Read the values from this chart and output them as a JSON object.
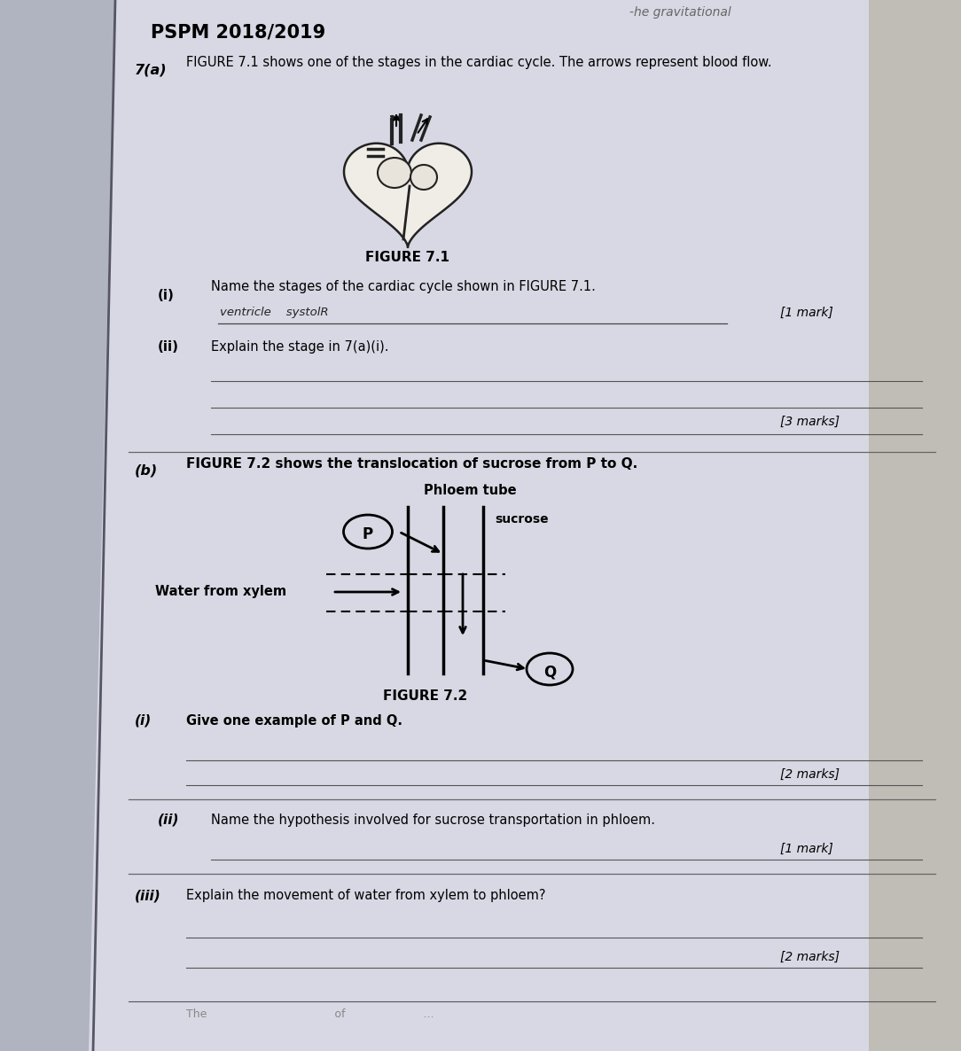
{
  "bg_color_outer": "#b8b5b0",
  "bg_color_left": "#c8ccd8",
  "bg_color_page": "#dcdce8",
  "bg_color_right": "#c0bdb8",
  "header_text": "PSPM 2018/2019",
  "top_right_text": "-he gravitational",
  "question_7a_label": "7(a)",
  "question_7a_text": "FIGURE 7.1 shows one of the stages in the cardiac cycle. The arrows represent blood flow.",
  "figure71_label": "FIGURE 7.1",
  "q_i_label": "(i)",
  "q_i_text": "Name the stages of the cardiac cycle shown in FIGURE 7.1.",
  "q_i_answer": "ventricle    systolR",
  "q_ii_label": "(ii)",
  "q_ii_text": "Explain the stage in 7(a)(i).",
  "mark_1": "[1 mark]",
  "mark_3": "[3 marks]",
  "question_7b_label": "(b)",
  "question_7b_text": "FIGURE 7.2 shows the translocation of sucrose from P to Q.",
  "phloem_tube_label": "Phloem tube",
  "p_label": "P",
  "q_label": "Q",
  "sucrose_label": "sucrose",
  "water_label": "Water from xylem",
  "figure72_label": "FIGURE 7.2",
  "q_bi_label": "(i)",
  "q_bi_text": "Give one example of P and Q.",
  "mark_2a": "[2 marks]",
  "q_bii_label": "(ii)",
  "q_bii_text": "Name the hypothesis involved for sucrose transportation in phloem.",
  "mark_1b": "[1 mark]",
  "q_biii_label": "(iii)",
  "q_biii_text": "Explain the movement of water from xylem to phloem?",
  "mark_2b": "[2 marks]",
  "bottom_text": "The                                    of                      ..."
}
